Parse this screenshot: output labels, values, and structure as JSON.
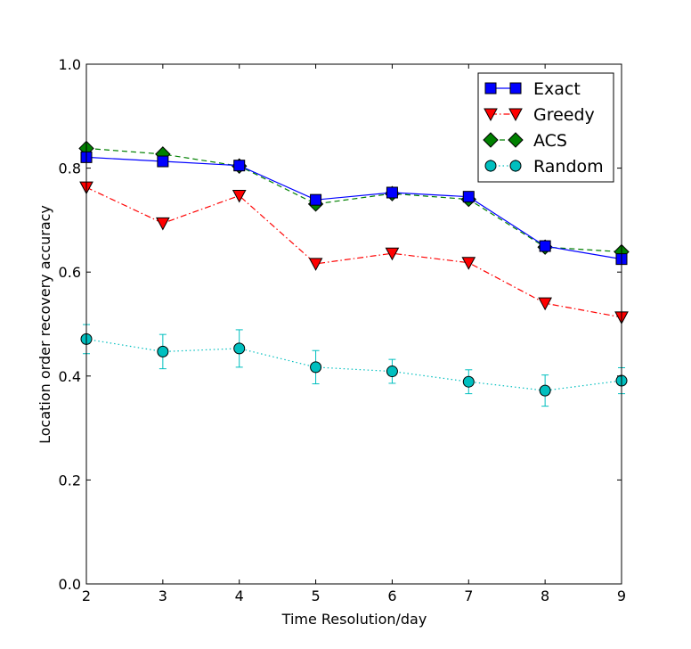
{
  "chart_data": {
    "type": "line",
    "title": "",
    "xlabel": "Time Resolution/day",
    "ylabel": "Location order recovery accuracy",
    "xlim": [
      2,
      9
    ],
    "ylim": [
      0.0,
      1.0
    ],
    "xticks": [
      "2",
      "3",
      "4",
      "5",
      "6",
      "7",
      "8",
      "9"
    ],
    "yticks": [
      "0.0",
      "0.2",
      "0.4",
      "0.6",
      "0.8",
      "1.0"
    ],
    "legend_position": "top-right",
    "x": [
      2,
      3,
      4,
      5,
      6,
      7,
      8,
      9
    ],
    "series": [
      {
        "name": "Exact",
        "color": "#0000ff",
        "marker": "square",
        "linestyle": "solid",
        "values": [
          0.821,
          0.813,
          0.805,
          0.739,
          0.753,
          0.745,
          0.65,
          0.625
        ]
      },
      {
        "name": "Greedy",
        "color": "#ff0000",
        "marker": "triangle-down",
        "linestyle": "dashdot",
        "values": [
          0.763,
          0.694,
          0.747,
          0.616,
          0.636,
          0.618,
          0.54,
          0.513
        ]
      },
      {
        "name": "ACS",
        "color": "#008000",
        "marker": "diamond",
        "linestyle": "dashed",
        "values": [
          0.838,
          0.827,
          0.804,
          0.731,
          0.751,
          0.74,
          0.648,
          0.639
        ],
        "errors": [
          0.006,
          0.006,
          0.006,
          0.006,
          0.006,
          0.006,
          0.006,
          0.006
        ]
      },
      {
        "name": "Random",
        "color": "#00bfbf",
        "marker": "circle",
        "linestyle": "dotted",
        "values": [
          0.471,
          0.447,
          0.453,
          0.417,
          0.409,
          0.389,
          0.372,
          0.391
        ],
        "errors": [
          0.028,
          0.033,
          0.036,
          0.032,
          0.023,
          0.023,
          0.03,
          0.025
        ]
      }
    ]
  }
}
